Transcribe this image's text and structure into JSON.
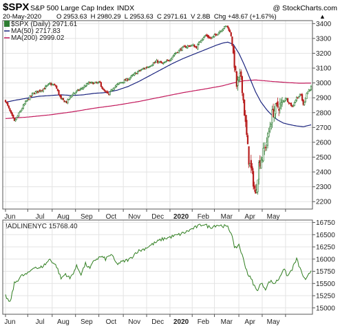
{
  "header": {
    "symbol": "$SPX",
    "description": "S&P 500 Large Cap Index",
    "exchange": "INDX",
    "attribution": "@ StockCharts.com",
    "date": "20-May-2020",
    "quote": "O 2953.63  H 2980.29  L 2953.63  C 2971.61  V 2.8B  Chg +48.67 (+1.67%)",
    "quote_arrow": "▲"
  },
  "colors": {
    "up": "#2e7d32",
    "down": "#b71c1c",
    "ma50": "#1a237e",
    "ma200": "#c2185b",
    "adline": "#2e7d1e",
    "grid": "#e3e3e3",
    "frame": "#555555"
  },
  "chart_data": [
    {
      "type": "candlestick",
      "legend": [
        {
          "label": "$SPX (Daily) 2971.61",
          "kind": "candle"
        },
        {
          "label": "MA(50) 2717.83",
          "kind": "line",
          "color": "#1a237e"
        },
        {
          "label": "MA(200) 2999.02",
          "kind": "line",
          "color": "#c2185b"
        }
      ],
      "ylim": [
        2150,
        3420
      ],
      "yticks": [
        3400,
        3300,
        3200,
        3100,
        3000,
        2900,
        2800,
        2700,
        2600,
        2500,
        2400,
        2300,
        2200
      ],
      "xticks": [
        "Jun",
        "Jul",
        "Aug",
        "Sep",
        "Oct",
        "Nov",
        "Dec",
        "2020",
        "Feb",
        "Mar",
        "Apr",
        "May"
      ],
      "anchors_close": [
        [
          0,
          2880
        ],
        [
          5,
          2790
        ],
        [
          8,
          2740
        ],
        [
          18,
          2870
        ],
        [
          25,
          2930
        ],
        [
          33,
          2955
        ],
        [
          40,
          2995
        ],
        [
          45,
          2980
        ],
        [
          50,
          2890
        ],
        [
          55,
          2870
        ],
        [
          60,
          2925
        ],
        [
          68,
          2960
        ],
        [
          75,
          3000
        ],
        [
          85,
          3000
        ],
        [
          88,
          2950
        ],
        [
          93,
          2920
        ],
        [
          97,
          2970
        ],
        [
          103,
          3000
        ],
        [
          110,
          3025
        ],
        [
          120,
          3080
        ],
        [
          128,
          3110
        ],
        [
          136,
          3145
        ],
        [
          142,
          3130
        ],
        [
          148,
          3160
        ],
        [
          152,
          3195
        ],
        [
          160,
          3240
        ],
        [
          168,
          3255
        ],
        [
          172,
          3240
        ],
        [
          176,
          3295
        ],
        [
          180,
          3320
        ],
        [
          185,
          3300
        ],
        [
          190,
          3330
        ],
        [
          196,
          3370
        ],
        [
          199,
          3385
        ],
        [
          201,
          3360
        ],
        [
          203,
          3320
        ],
        [
          206,
          3130
        ],
        [
          208,
          2980
        ],
        [
          212,
          3050
        ],
        [
          216,
          2720
        ],
        [
          219,
          2480
        ],
        [
          222,
          2380
        ],
        [
          225,
          2240
        ],
        [
          228,
          2450
        ],
        [
          232,
          2530
        ],
        [
          236,
          2630
        ],
        [
          240,
          2790
        ],
        [
          244,
          2840
        ],
        [
          248,
          2850
        ],
        [
          252,
          2900
        ],
        [
          255,
          2870
        ],
        [
          258,
          2840
        ],
        [
          262,
          2900
        ],
        [
          266,
          2920
        ],
        [
          268,
          2850
        ],
        [
          271,
          2930
        ],
        [
          275,
          2972
        ]
      ],
      "ma50_points": [
        [
          0,
          2870
        ],
        [
          10,
          2885
        ],
        [
          20,
          2898
        ],
        [
          30,
          2910
        ],
        [
          40,
          2915
        ],
        [
          50,
          2920
        ],
        [
          60,
          2915
        ],
        [
          70,
          2920
        ],
        [
          80,
          2930
        ],
        [
          90,
          2935
        ],
        [
          100,
          2950
        ],
        [
          110,
          2975
        ],
        [
          120,
          3010
        ],
        [
          130,
          3050
        ],
        [
          140,
          3090
        ],
        [
          150,
          3130
        ],
        [
          160,
          3165
        ],
        [
          170,
          3195
        ],
        [
          180,
          3225
        ],
        [
          190,
          3255
        ],
        [
          196,
          3270
        ],
        [
          200,
          3275
        ],
        [
          205,
          3260
        ],
        [
          210,
          3200
        ],
        [
          215,
          3120
        ],
        [
          220,
          3030
        ],
        [
          225,
          2940
        ],
        [
          230,
          2870
        ],
        [
          235,
          2820
        ],
        [
          240,
          2780
        ],
        [
          245,
          2750
        ],
        [
          250,
          2730
        ],
        [
          255,
          2720
        ],
        [
          262,
          2710
        ],
        [
          268,
          2705
        ],
        [
          275,
          2718
        ]
      ],
      "ma200_points": [
        [
          0,
          2760
        ],
        [
          20,
          2770
        ],
        [
          40,
          2785
        ],
        [
          60,
          2805
        ],
        [
          80,
          2830
        ],
        [
          100,
          2850
        ],
        [
          120,
          2875
        ],
        [
          140,
          2905
        ],
        [
          160,
          2935
        ],
        [
          180,
          2960
        ],
        [
          195,
          2980
        ],
        [
          205,
          3000
        ],
        [
          215,
          3015
        ],
        [
          225,
          3020
        ],
        [
          240,
          3010
        ],
        [
          255,
          3002
        ],
        [
          265,
          2998
        ],
        [
          275,
          2999
        ]
      ]
    },
    {
      "type": "line",
      "legend": [
        {
          "label": "!ADLINENYC 15768.40",
          "kind": "line"
        }
      ],
      "ylim": [
        14870,
        16800
      ],
      "yticks": [
        16750,
        16500,
        16250,
        16000,
        15750,
        15500,
        15250,
        15000
      ],
      "xticks": [
        "Jun",
        "Jul",
        "Aug",
        "Sep",
        "Oct",
        "Nov",
        "Dec",
        "2020",
        "Feb",
        "Mar",
        "Apr",
        "May"
      ],
      "anchors": [
        [
          0,
          15250
        ],
        [
          4,
          15100
        ],
        [
          8,
          15500
        ],
        [
          14,
          15650
        ],
        [
          20,
          15700
        ],
        [
          26,
          15850
        ],
        [
          30,
          15800
        ],
        [
          36,
          15900
        ],
        [
          40,
          16000
        ],
        [
          46,
          15850
        ],
        [
          50,
          15600
        ],
        [
          54,
          15700
        ],
        [
          58,
          15600
        ],
        [
          64,
          15850
        ],
        [
          68,
          15700
        ],
        [
          72,
          15900
        ],
        [
          76,
          15800
        ],
        [
          80,
          15980
        ],
        [
          86,
          16050
        ],
        [
          90,
          16000
        ],
        [
          95,
          16100
        ],
        [
          100,
          15900
        ],
        [
          106,
          15950
        ],
        [
          112,
          16000
        ],
        [
          118,
          16150
        ],
        [
          124,
          16200
        ],
        [
          132,
          16300
        ],
        [
          140,
          16400
        ],
        [
          148,
          16450
        ],
        [
          156,
          16500
        ],
        [
          162,
          16550
        ],
        [
          168,
          16620
        ],
        [
          174,
          16680
        ],
        [
          178,
          16720
        ],
        [
          184,
          16650
        ],
        [
          190,
          16700
        ],
        [
          196,
          16680
        ],
        [
          200,
          16650
        ],
        [
          204,
          16500
        ],
        [
          206,
          16200
        ],
        [
          210,
          16300
        ],
        [
          214,
          16000
        ],
        [
          218,
          15700
        ],
        [
          222,
          15550
        ],
        [
          226,
          15350
        ],
        [
          230,
          15500
        ],
        [
          234,
          15400
        ],
        [
          238,
          15550
        ],
        [
          242,
          15500
        ],
        [
          246,
          15600
        ],
        [
          250,
          15800
        ],
        [
          254,
          15650
        ],
        [
          258,
          15800
        ],
        [
          262,
          16000
        ],
        [
          266,
          15750
        ],
        [
          270,
          15550
        ],
        [
          275,
          15768
        ]
      ]
    }
  ]
}
